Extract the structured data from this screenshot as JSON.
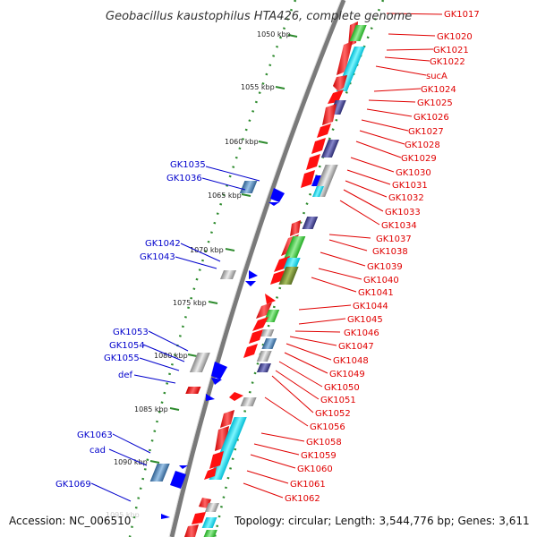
{
  "title": "Geobacillus kaustophilus HTA426, complete genome",
  "footer": {
    "accession": "Accession: NC_006510",
    "topology": "Topology: circular; Length: 3,544,776 bp; Genes: 3,611"
  },
  "kbp_labels": [
    "1050 kbp",
    "1055 kbp",
    "1060 kbp",
    "1065 kbp",
    "1070 kbp",
    "1075 kbp",
    "1080 kbp",
    "1085 kbp",
    "1090 kbp",
    "1095 kbp"
  ],
  "genes_right": [
    "GK1017",
    "GK1020",
    "GK1021",
    "GK1022",
    "sucA",
    "GK1024",
    "GK1025",
    "GK1026",
    "GK1027",
    "GK1028",
    "GK1029",
    "GK1030",
    "GK1031",
    "GK1032",
    "GK1033",
    "GK1034",
    "GK1037",
    "GK1038",
    "GK1039",
    "GK1040",
    "GK1041",
    "GK1044",
    "GK1045",
    "GK1046",
    "GK1047",
    "GK1048",
    "GK1049",
    "GK1050",
    "GK1051",
    "GK1052",
    "GK1056",
    "GK1058",
    "GK1059",
    "GK1060",
    "GK1061",
    "GK1062"
  ],
  "genes_left": [
    "GK1035",
    "GK1036",
    "GK1042",
    "GK1043",
    "GK1053",
    "GK1054",
    "GK1055",
    "def",
    "GK1063",
    "cad",
    "GK1069"
  ],
  "colors": {
    "red_label": "#e00000",
    "blue_label": "#0000cc",
    "backbone": "#888888",
    "tick": "#2e8b2e",
    "gene_red": "#ff0000",
    "gene_blue": "#0000ff",
    "gene_green": "#33cc33",
    "gene_cyan": "#00e5ff",
    "gene_navy": "#3a3a8c",
    "gene_steel": "#4a7fb0",
    "gene_gray": "#b8b8b8",
    "gene_olive": "#6b8e23",
    "gene_pink": "#f08080"
  }
}
